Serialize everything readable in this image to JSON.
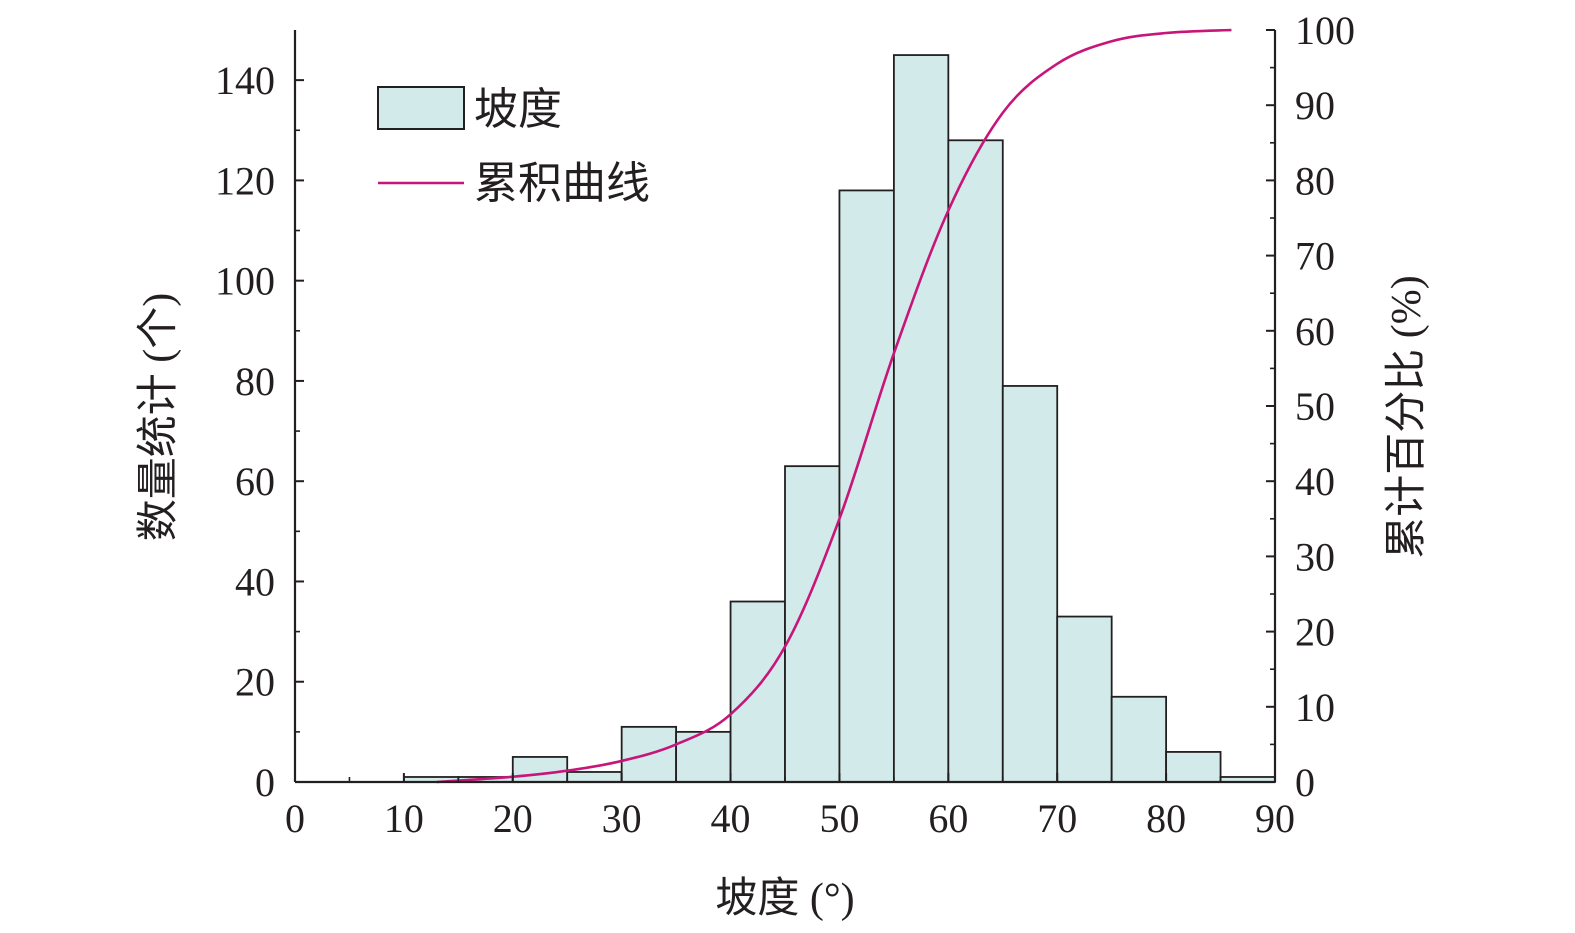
{
  "chart_data": {
    "type": "bar",
    "xlabel": "坡度 (°)",
    "ylabel_left": "数量统计 (个)",
    "ylabel_right": "累计百分比 (%)",
    "xlim": [
      0,
      90
    ],
    "ylim_left": [
      0,
      150
    ],
    "ylim_right": [
      0,
      100
    ],
    "x_ticks": [
      "0",
      "10",
      "20",
      "30",
      "40",
      "50",
      "60",
      "70",
      "80",
      "90"
    ],
    "y_left_ticks": [
      "0",
      "20",
      "40",
      "60",
      "80",
      "100",
      "120",
      "140"
    ],
    "y_right_ticks": [
      "0",
      "10",
      "20",
      "30",
      "40",
      "50",
      "60",
      "70",
      "80",
      "90",
      "100"
    ],
    "legend": {
      "position": "top-left",
      "bar_label": "坡度",
      "line_label": "累积曲线"
    },
    "colors": {
      "bar_fill": "#d2ebea",
      "bar_stroke": "#231f20",
      "line": "#c8157a",
      "axis": "#231f20"
    },
    "grid": false,
    "bins": [
      {
        "start": 10,
        "end": 15,
        "count": 1
      },
      {
        "start": 15,
        "end": 20,
        "count": 1
      },
      {
        "start": 20,
        "end": 25,
        "count": 5
      },
      {
        "start": 25,
        "end": 30,
        "count": 2
      },
      {
        "start": 30,
        "end": 35,
        "count": 11
      },
      {
        "start": 35,
        "end": 40,
        "count": 10
      },
      {
        "start": 40,
        "end": 45,
        "count": 36
      },
      {
        "start": 45,
        "end": 50,
        "count": 63
      },
      {
        "start": 50,
        "end": 55,
        "count": 118
      },
      {
        "start": 55,
        "end": 60,
        "count": 145
      },
      {
        "start": 60,
        "end": 65,
        "count": 128
      },
      {
        "start": 65,
        "end": 70,
        "count": 79
      },
      {
        "start": 70,
        "end": 75,
        "count": 33
      },
      {
        "start": 75,
        "end": 80,
        "count": 17
      },
      {
        "start": 80,
        "end": 85,
        "count": 6
      },
      {
        "start": 85,
        "end": 90,
        "count": 1
      }
    ],
    "cumulative_curve": {
      "x": [
        13,
        20,
        25,
        30,
        35,
        40,
        45,
        50,
        55,
        60,
        65,
        70,
        75,
        80,
        86
      ],
      "y": [
        0,
        0.7,
        1.5,
        2.8,
        5,
        9,
        18,
        35,
        57,
        76,
        89,
        95.5,
        98.5,
        99.6,
        100
      ]
    }
  }
}
